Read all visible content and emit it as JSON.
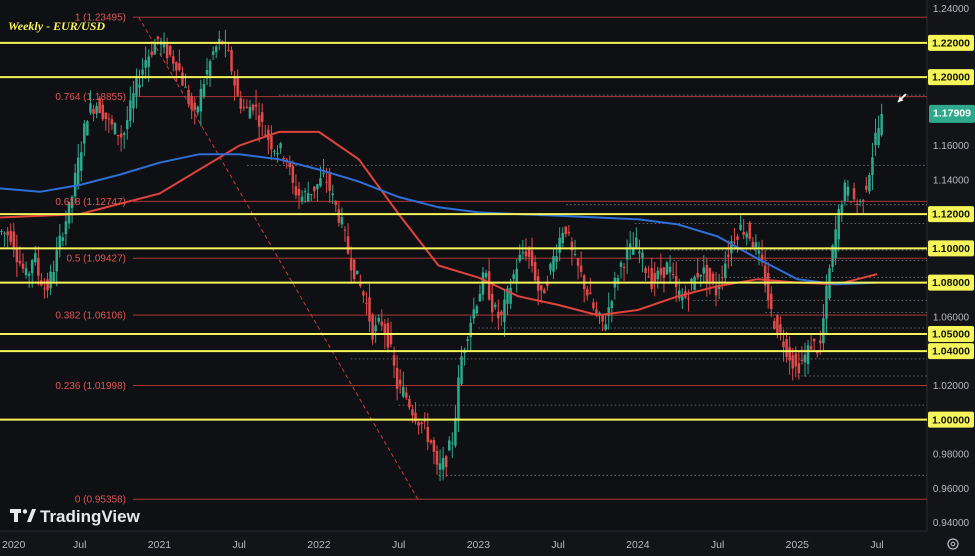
{
  "chart_data": {
    "type": "candlestick",
    "title": "Weekly - EUR/USD",
    "timeframe": "Weekly",
    "symbol": "EUR/USD",
    "last_price": "1.17909",
    "x_ticks": [
      "2020",
      "Jul",
      "2021",
      "Jul",
      "2022",
      "Jul",
      "2023",
      "Jul",
      "2024",
      "Jul",
      "2025",
      "Jul"
    ],
    "x_tick_dates": [
      2020.0,
      2020.5,
      2021.0,
      2021.5,
      2022.0,
      2022.5,
      2023.0,
      2023.5,
      2024.0,
      2024.5,
      2025.0,
      2025.5
    ],
    "y_ticks": [
      "1.24000",
      "1.22000",
      "1.20000",
      "1.18000",
      "1.16000",
      "1.14000",
      "1.12000",
      "1.10000",
      "1.08000",
      "1.06000",
      "1.04000",
      "1.02000",
      "1.00000",
      "0.98000",
      "0.96000",
      "0.94000"
    ],
    "y_range": [
      0.935,
      1.245
    ],
    "x_range": [
      2020.0,
      2025.6
    ],
    "fib_levels": [
      {
        "label": "1 (1.23495)",
        "value": 1.23495
      },
      {
        "label": "0.764 (1.18855)",
        "value": 1.18855
      },
      {
        "label": "0.618 (1.12747)",
        "value": 1.12747
      },
      {
        "label": "0.5 (1.09427)",
        "value": 1.09427
      },
      {
        "label": "0.382 (1.06106)",
        "value": 1.06106
      },
      {
        "label": "0.236 (1.01998)",
        "value": 1.01998
      },
      {
        "label": "0 (0.95358)",
        "value": 0.95358
      }
    ],
    "horizontal_levels": [
      {
        "label": "1.22000",
        "value": 1.22
      },
      {
        "label": "1.20000",
        "value": 1.2
      },
      {
        "label": "1.12000",
        "value": 1.12
      },
      {
        "label": "1.10000",
        "value": 1.1
      },
      {
        "label": "1.08000",
        "value": 1.08
      },
      {
        "label": "1.05000",
        "value": 1.05
      },
      {
        "label": "1.04000",
        "value": 1.04
      },
      {
        "label": "1.00000",
        "value": 1.0
      }
    ],
    "dotted_levels": [
      {
        "value": 1.1895,
        "from": 2021.75
      },
      {
        "value": 1.1485,
        "from": 2021.55
      },
      {
        "value": 1.1255,
        "from": 2023.55
      },
      {
        "value": 1.1145,
        "from": 2023.98
      },
      {
        "value": 1.099,
        "from": 2024.2
      },
      {
        "value": 1.093,
        "from": 2024.2
      },
      {
        "value": 1.083,
        "from": 2024.55
      },
      {
        "value": 1.0695,
        "from": 2024.35
      },
      {
        "value": 1.0625,
        "from": 2024.8
      },
      {
        "value": 1.0535,
        "from": 2023.0
      },
      {
        "value": 1.0355,
        "from": 2022.2
      },
      {
        "value": 1.0255,
        "from": 2025.0
      },
      {
        "value": 1.0085,
        "from": 2022.5
      },
      {
        "value": 0.9675,
        "from": 2022.75
      }
    ],
    "price_path": [
      [
        2020.0,
        1.11
      ],
      [
        2020.08,
        1.108
      ],
      [
        2020.12,
        1.095
      ],
      [
        2020.18,
        1.082
      ],
      [
        2020.22,
        1.098
      ],
      [
        2020.25,
        1.085
      ],
      [
        2020.3,
        1.075
      ],
      [
        2020.35,
        1.09
      ],
      [
        2020.4,
        1.11
      ],
      [
        2020.45,
        1.125
      ],
      [
        2020.5,
        1.15
      ],
      [
        2020.56,
        1.18
      ],
      [
        2020.62,
        1.185
      ],
      [
        2020.7,
        1.172
      ],
      [
        2020.78,
        1.165
      ],
      [
        2020.85,
        1.19
      ],
      [
        2020.92,
        1.21
      ],
      [
        2021.0,
        1.222
      ],
      [
        2021.05,
        1.215
      ],
      [
        2021.12,
        1.208
      ],
      [
        2021.18,
        1.19
      ],
      [
        2021.23,
        1.176
      ],
      [
        2021.28,
        1.195
      ],
      [
        2021.35,
        1.215
      ],
      [
        2021.4,
        1.222
      ],
      [
        2021.45,
        1.21
      ],
      [
        2021.5,
        1.188
      ],
      [
        2021.55,
        1.18
      ],
      [
        2021.6,
        1.185
      ],
      [
        2021.65,
        1.172
      ],
      [
        2021.72,
        1.16
      ],
      [
        2021.8,
        1.155
      ],
      [
        2021.85,
        1.135
      ],
      [
        2021.9,
        1.13
      ],
      [
        2021.98,
        1.135
      ],
      [
        2022.05,
        1.142
      ],
      [
        2022.1,
        1.128
      ],
      [
        2022.15,
        1.115
      ],
      [
        2022.2,
        1.095
      ],
      [
        2022.25,
        1.082
      ],
      [
        2022.3,
        1.07
      ],
      [
        2022.35,
        1.05
      ],
      [
        2022.4,
        1.058
      ],
      [
        2022.45,
        1.045
      ],
      [
        2022.5,
        1.02
      ],
      [
        2022.55,
        1.015
      ],
      [
        2022.6,
        1.005
      ],
      [
        2022.67,
        0.995
      ],
      [
        2022.72,
        0.985
      ],
      [
        2022.75,
        0.97
      ],
      [
        2022.8,
        0.975
      ],
      [
        2022.85,
        0.99
      ],
      [
        2022.9,
        1.035
      ],
      [
        2022.95,
        1.055
      ],
      [
        2023.0,
        1.07
      ],
      [
        2023.05,
        1.085
      ],
      [
        2023.1,
        1.065
      ],
      [
        2023.15,
        1.058
      ],
      [
        2023.2,
        1.075
      ],
      [
        2023.25,
        1.09
      ],
      [
        2023.3,
        1.1
      ],
      [
        2023.35,
        1.09
      ],
      [
        2023.4,
        1.07
      ],
      [
        2023.45,
        1.085
      ],
      [
        2023.5,
        1.1
      ],
      [
        2023.55,
        1.115
      ],
      [
        2023.6,
        1.095
      ],
      [
        2023.65,
        1.085
      ],
      [
        2023.7,
        1.072
      ],
      [
        2023.75,
        1.06
      ],
      [
        2023.8,
        1.055
      ],
      [
        2023.85,
        1.075
      ],
      [
        2023.9,
        1.09
      ],
      [
        2023.95,
        1.098
      ],
      [
        2024.0,
        1.102
      ],
      [
        2024.05,
        1.09
      ],
      [
        2024.1,
        1.08
      ],
      [
        2024.15,
        1.085
      ],
      [
        2024.2,
        1.09
      ],
      [
        2024.25,
        1.075
      ],
      [
        2024.3,
        1.07
      ],
      [
        2024.35,
        1.08
      ],
      [
        2024.4,
        1.088
      ],
      [
        2024.45,
        1.083
      ],
      [
        2024.5,
        1.075
      ],
      [
        2024.55,
        1.09
      ],
      [
        2024.6,
        1.105
      ],
      [
        2024.65,
        1.112
      ],
      [
        2024.7,
        1.11
      ],
      [
        2024.75,
        1.1
      ],
      [
        2024.8,
        1.085
      ],
      [
        2024.85,
        1.06
      ],
      [
        2024.9,
        1.05
      ],
      [
        2024.95,
        1.04
      ],
      [
        2025.0,
        1.03
      ],
      [
        2025.05,
        1.035
      ],
      [
        2025.1,
        1.045
      ],
      [
        2025.15,
        1.04
      ],
      [
        2025.2,
        1.08
      ],
      [
        2025.25,
        1.11
      ],
      [
        2025.3,
        1.135
      ],
      [
        2025.35,
        1.13
      ],
      [
        2025.4,
        1.125
      ],
      [
        2025.45,
        1.14
      ],
      [
        2025.5,
        1.165
      ],
      [
        2025.55,
        1.179
      ]
    ],
    "moving_averages": [
      {
        "color": "#e0433c",
        "points": [
          [
            2020.0,
            1.118
          ],
          [
            2020.5,
            1.12
          ],
          [
            2021.0,
            1.132
          ],
          [
            2021.5,
            1.16
          ],
          [
            2021.75,
            1.168
          ],
          [
            2022.0,
            1.168
          ],
          [
            2022.25,
            1.152
          ],
          [
            2022.5,
            1.12
          ],
          [
            2022.75,
            1.09
          ],
          [
            2023.0,
            1.083
          ],
          [
            2023.25,
            1.072
          ],
          [
            2023.5,
            1.067
          ],
          [
            2023.75,
            1.061
          ],
          [
            2024.0,
            1.064
          ],
          [
            2024.25,
            1.072
          ],
          [
            2024.5,
            1.078
          ],
          [
            2024.75,
            1.082
          ],
          [
            2025.0,
            1.08
          ],
          [
            2025.25,
            1.079
          ],
          [
            2025.5,
            1.085
          ]
        ]
      },
      {
        "color": "#2f6fd8",
        "points": [
          [
            2020.0,
            1.135
          ],
          [
            2020.25,
            1.133
          ],
          [
            2020.5,
            1.137
          ],
          [
            2020.75,
            1.143
          ],
          [
            2021.0,
            1.15
          ],
          [
            2021.25,
            1.155
          ],
          [
            2021.5,
            1.155
          ],
          [
            2021.75,
            1.152
          ],
          [
            2022.0,
            1.146
          ],
          [
            2022.25,
            1.139
          ],
          [
            2022.5,
            1.13
          ],
          [
            2022.75,
            1.124
          ],
          [
            2023.0,
            1.121
          ],
          [
            2023.25,
            1.12
          ],
          [
            2023.5,
            1.119
          ],
          [
            2023.75,
            1.118
          ],
          [
            2024.0,
            1.117
          ],
          [
            2024.25,
            1.114
          ],
          [
            2024.5,
            1.107
          ],
          [
            2024.75,
            1.094
          ],
          [
            2025.0,
            1.082
          ],
          [
            2025.25,
            1.079
          ],
          [
            2025.5,
            1.08
          ]
        ]
      }
    ],
    "fib_diagonal": [
      [
        2020.87,
        1.23495
      ],
      [
        2022.62,
        0.95358
      ]
    ],
    "colors": {
      "background": "#0f1014",
      "yellow_level": "#f5f55a",
      "fib_line": "#c23c3c",
      "fib_text": "#e05555",
      "bull": "#2fa98c",
      "bear": "#e04a4a",
      "axis_text": "#b8bac0",
      "last_price_bg": "#2fa98c"
    },
    "branding": "TradingView",
    "icons": [
      "arrow-annotation-icon",
      "settings-icon"
    ]
  }
}
